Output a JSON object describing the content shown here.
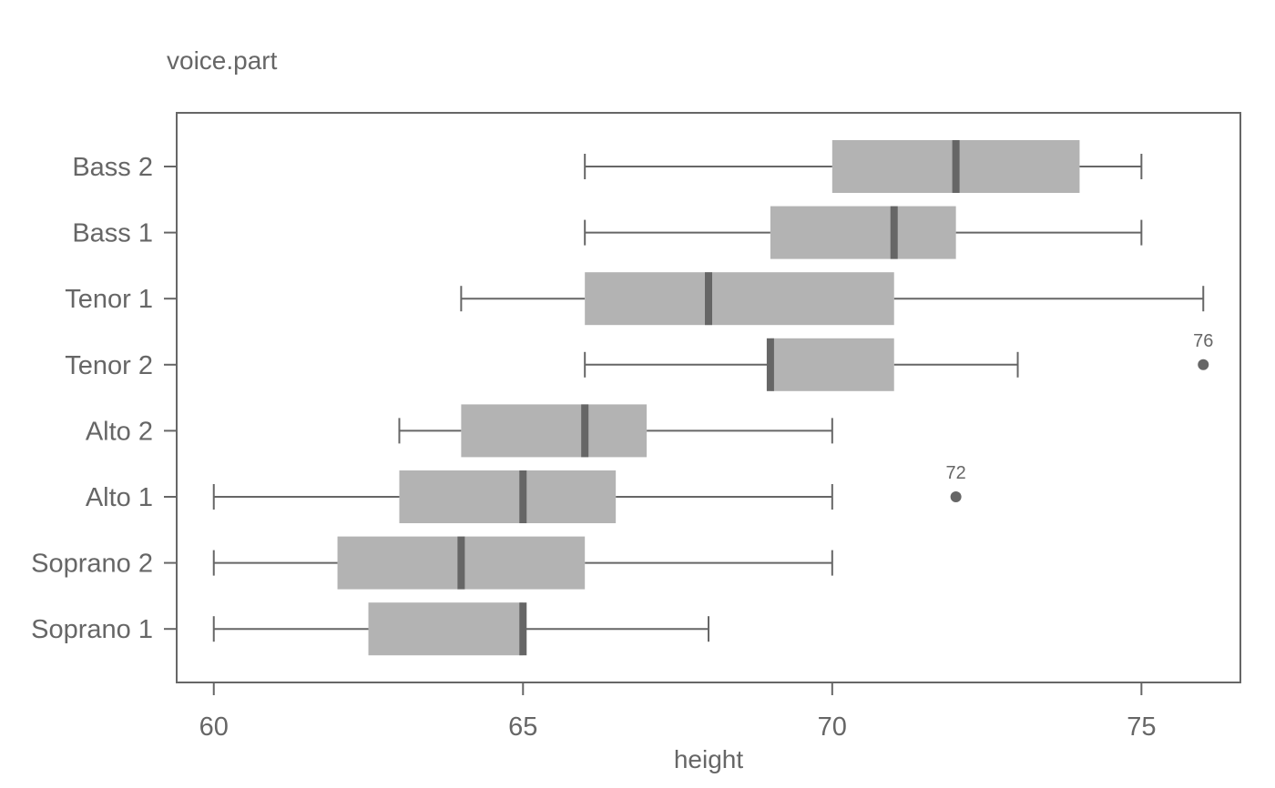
{
  "chart_data": {
    "type": "boxplot",
    "orientation": "horizontal",
    "title": "voice.part",
    "xlabel": "height",
    "ylabel": "",
    "xlim": [
      59.4,
      76.6
    ],
    "xticks": [
      60,
      65,
      70,
      75
    ],
    "grid": false,
    "colors": {
      "box": "#b3b3b3",
      "median": "#666666",
      "lines": "#666666",
      "text": "#666666"
    },
    "categories": [
      "Bass 2",
      "Bass 1",
      "Tenor 1",
      "Tenor 2",
      "Alto 2",
      "Alto 1",
      "Soprano 2",
      "Soprano 1"
    ],
    "boxes": [
      {
        "category": "Bass 2",
        "whisker_low": 66,
        "q1": 70,
        "median": 72,
        "q3": 74,
        "whisker_high": 75
      },
      {
        "category": "Bass 1",
        "whisker_low": 66,
        "q1": 69,
        "median": 71,
        "q3": 72,
        "whisker_high": 75
      },
      {
        "category": "Tenor 1",
        "whisker_low": 64,
        "q1": 66,
        "median": 68,
        "q3": 71,
        "whisker_high": 76
      },
      {
        "category": "Tenor 2",
        "whisker_low": 66,
        "q1": 69,
        "median": 69,
        "q3": 71,
        "whisker_high": 73
      },
      {
        "category": "Alto 2",
        "whisker_low": 63,
        "q1": 64,
        "median": 66,
        "q3": 67,
        "whisker_high": 70
      },
      {
        "category": "Alto 1",
        "whisker_low": 60,
        "q1": 63,
        "median": 65,
        "q3": 66.5,
        "whisker_high": 70
      },
      {
        "category": "Soprano 2",
        "whisker_low": 60,
        "q1": 62,
        "median": 64,
        "q3": 66,
        "whisker_high": 70
      },
      {
        "category": "Soprano 1",
        "whisker_low": 60,
        "q1": 62.5,
        "median": 65,
        "q3": 65,
        "whisker_high": 68
      }
    ],
    "outliers": [
      {
        "category": "Tenor 2",
        "value": 76,
        "label": "76"
      },
      {
        "category": "Alto 1",
        "value": 72,
        "label": "72"
      }
    ]
  }
}
